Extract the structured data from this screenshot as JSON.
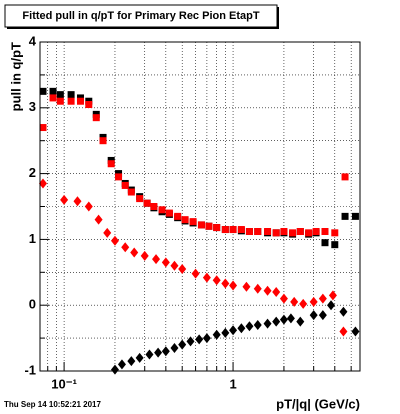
{
  "chart_data": {
    "type": "scatter",
    "title": "Fitted pull in q/pT for Primary Rec Pion EtapT",
    "y_label": "pull in q/pT",
    "x_label": "pT/|q| (GeV/c)",
    "timestamp": "Thu Sep 14 10:52:21 2017",
    "log_x": true,
    "grid": true,
    "xlim": [
      0.072,
      5.64
    ],
    "ylim": [
      -1,
      4
    ],
    "xticks": [
      {
        "value": 0.1,
        "label": "10⁻¹"
      },
      1
    ],
    "xminor": [
      0.08,
      0.09,
      0.2,
      0.3,
      0.4,
      0.5,
      0.6,
      0.7,
      0.8,
      0.9,
      2,
      3,
      4,
      5
    ],
    "yticks": [
      -1,
      0,
      1,
      2,
      3,
      4
    ],
    "yminor": [
      -0.5,
      0.5,
      1.5,
      2.5,
      3.5
    ],
    "series": [
      {
        "marker": "square",
        "color": "#000000",
        "x": [
          0.075,
          0.086,
          0.095,
          0.11,
          0.125,
          0.14,
          0.155,
          0.17,
          0.19,
          0.21,
          0.23,
          0.25,
          0.28,
          0.31,
          0.34,
          0.38,
          0.42,
          0.47,
          0.52,
          0.58,
          0.65,
          0.72,
          0.8,
          0.9,
          1.0,
          1.12,
          1.25,
          1.4,
          1.6,
          1.8,
          2.0,
          2.25,
          2.5,
          2.8,
          3.1,
          3.5,
          4.0,
          4.6,
          5.3
        ],
        "values": [
          3.25,
          3.25,
          3.2,
          3.2,
          3.15,
          3.1,
          2.9,
          2.55,
          2.2,
          2.0,
          1.85,
          1.75,
          1.65,
          1.55,
          1.48,
          1.42,
          1.38,
          1.33,
          1.28,
          1.25,
          1.22,
          1.2,
          1.18,
          1.15,
          1.15,
          1.13,
          1.12,
          1.12,
          1.1,
          1.1,
          1.1,
          1.08,
          1.12,
          1.08,
          1.1,
          0.95,
          0.92,
          1.35,
          1.35
        ]
      },
      {
        "marker": "square",
        "color": "#ff0000",
        "x": [
          0.075,
          0.086,
          0.095,
          0.11,
          0.125,
          0.14,
          0.155,
          0.17,
          0.19,
          0.21,
          0.23,
          0.25,
          0.28,
          0.31,
          0.34,
          0.38,
          0.42,
          0.47,
          0.52,
          0.58,
          0.65,
          0.72,
          0.8,
          0.9,
          1.0,
          1.12,
          1.25,
          1.4,
          1.6,
          1.8,
          2.0,
          2.25,
          2.5,
          2.8,
          3.1,
          3.5,
          4.0,
          4.6,
          5.3
        ],
        "values": [
          2.7,
          3.15,
          3.1,
          3.1,
          3.1,
          3.05,
          2.85,
          2.5,
          2.15,
          1.95,
          1.82,
          1.72,
          1.62,
          1.55,
          1.5,
          1.45,
          1.4,
          1.35,
          1.3,
          1.27,
          1.22,
          1.2,
          1.18,
          1.15,
          1.15,
          1.15,
          1.12,
          1.12,
          1.12,
          1.1,
          1.12,
          1.1,
          1.12,
          1.1,
          1.12,
          1.12,
          1.1,
          1.95,
          null
        ]
      },
      {
        "marker": "diamond",
        "color": "#ff0000",
        "x": [
          0.075,
          0.1,
          0.12,
          0.14,
          0.16,
          0.18,
          0.2,
          0.23,
          0.26,
          0.3,
          0.35,
          0.4,
          0.45,
          0.5,
          0.6,
          0.7,
          0.8,
          0.9,
          1.0,
          1.2,
          1.4,
          1.6,
          1.8,
          2.0,
          2.3,
          2.6,
          3.0,
          3.4,
          3.9,
          4.5
        ],
        "values": [
          1.85,
          1.6,
          1.58,
          1.5,
          1.3,
          1.1,
          0.98,
          0.88,
          0.8,
          0.75,
          0.7,
          0.65,
          0.6,
          0.55,
          0.48,
          0.42,
          0.38,
          0.33,
          0.3,
          0.28,
          0.25,
          0.22,
          0.2,
          0.1,
          0.05,
          0.02,
          0.05,
          0.1,
          0.15,
          -0.4
        ]
      },
      {
        "marker": "diamond",
        "color": "#000000",
        "x": [
          0.2,
          0.22,
          0.25,
          0.28,
          0.32,
          0.36,
          0.4,
          0.45,
          0.5,
          0.56,
          0.63,
          0.7,
          0.8,
          0.9,
          1.0,
          1.12,
          1.25,
          1.4,
          1.6,
          1.8,
          2.0,
          2.2,
          2.5,
          3.0,
          3.4,
          3.8,
          4.5,
          5.3
        ],
        "values": [
          -0.98,
          -0.9,
          -0.85,
          -0.8,
          -0.75,
          -0.72,
          -0.7,
          -0.65,
          -0.6,
          -0.55,
          -0.52,
          -0.5,
          -0.45,
          -0.42,
          -0.38,
          -0.35,
          -0.32,
          -0.3,
          -0.28,
          -0.25,
          -0.22,
          -0.2,
          -0.25,
          -0.15,
          -0.15,
          0.0,
          -0.1,
          -0.4
        ]
      }
    ]
  }
}
